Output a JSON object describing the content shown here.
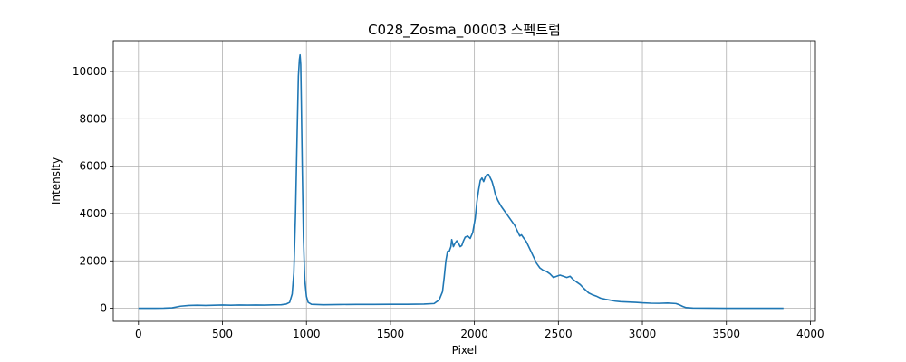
{
  "chart_data": {
    "type": "line",
    "title": "C028_Zosma_00003 스펙트럼",
    "xlabel": "Pixel",
    "ylabel": "Intensity",
    "xlim": [
      -150,
      4030
    ],
    "ylim": [
      -550,
      11300
    ],
    "xticks": [
      0,
      500,
      1000,
      1500,
      2000,
      2500,
      3000,
      3500,
      4000
    ],
    "yticks": [
      0,
      2000,
      4000,
      6000,
      8000,
      10000
    ],
    "grid": true,
    "series": [
      {
        "color": "#1f77b4",
        "points": [
          [
            0,
            0
          ],
          [
            100,
            0
          ],
          [
            150,
            5
          ],
          [
            200,
            20
          ],
          [
            250,
            90
          ],
          [
            300,
            120
          ],
          [
            350,
            130
          ],
          [
            400,
            120
          ],
          [
            450,
            130
          ],
          [
            500,
            140
          ],
          [
            550,
            130
          ],
          [
            600,
            140
          ],
          [
            650,
            135
          ],
          [
            700,
            140
          ],
          [
            750,
            135
          ],
          [
            800,
            145
          ],
          [
            850,
            150
          ],
          [
            880,
            180
          ],
          [
            900,
            250
          ],
          [
            915,
            600
          ],
          [
            925,
            1500
          ],
          [
            935,
            4000
          ],
          [
            945,
            7500
          ],
          [
            952,
            9800
          ],
          [
            958,
            10500
          ],
          [
            962,
            10700
          ],
          [
            966,
            10300
          ],
          [
            970,
            8500
          ],
          [
            975,
            6000
          ],
          [
            982,
            3000
          ],
          [
            990,
            1200
          ],
          [
            1000,
            500
          ],
          [
            1010,
            250
          ],
          [
            1030,
            170
          ],
          [
            1100,
            150
          ],
          [
            1200,
            160
          ],
          [
            1300,
            165
          ],
          [
            1400,
            165
          ],
          [
            1500,
            170
          ],
          [
            1600,
            170
          ],
          [
            1700,
            180
          ],
          [
            1760,
            200
          ],
          [
            1790,
            350
          ],
          [
            1810,
            700
          ],
          [
            1820,
            1300
          ],
          [
            1830,
            2000
          ],
          [
            1840,
            2400
          ],
          [
            1850,
            2400
          ],
          [
            1860,
            2600
          ],
          [
            1865,
            2900
          ],
          [
            1875,
            2600
          ],
          [
            1885,
            2750
          ],
          [
            1895,
            2850
          ],
          [
            1905,
            2750
          ],
          [
            1915,
            2600
          ],
          [
            1925,
            2650
          ],
          [
            1935,
            2850
          ],
          [
            1945,
            3000
          ],
          [
            1960,
            3050
          ],
          [
            1975,
            2950
          ],
          [
            1990,
            3200
          ],
          [
            2005,
            3800
          ],
          [
            2015,
            4500
          ],
          [
            2025,
            5000
          ],
          [
            2035,
            5400
          ],
          [
            2045,
            5500
          ],
          [
            2055,
            5350
          ],
          [
            2065,
            5550
          ],
          [
            2075,
            5650
          ],
          [
            2085,
            5650
          ],
          [
            2095,
            5500
          ],
          [
            2105,
            5350
          ],
          [
            2115,
            5100
          ],
          [
            2125,
            4800
          ],
          [
            2140,
            4550
          ],
          [
            2160,
            4300
          ],
          [
            2180,
            4100
          ],
          [
            2200,
            3900
          ],
          [
            2220,
            3700
          ],
          [
            2240,
            3500
          ],
          [
            2260,
            3200
          ],
          [
            2270,
            3050
          ],
          [
            2280,
            3100
          ],
          [
            2290,
            3000
          ],
          [
            2310,
            2800
          ],
          [
            2330,
            2500
          ],
          [
            2350,
            2200
          ],
          [
            2370,
            1900
          ],
          [
            2390,
            1700
          ],
          [
            2410,
            1600
          ],
          [
            2430,
            1550
          ],
          [
            2450,
            1450
          ],
          [
            2470,
            1300
          ],
          [
            2490,
            1350
          ],
          [
            2510,
            1400
          ],
          [
            2530,
            1350
          ],
          [
            2550,
            1300
          ],
          [
            2570,
            1350
          ],
          [
            2590,
            1200
          ],
          [
            2610,
            1100
          ],
          [
            2630,
            1000
          ],
          [
            2650,
            850
          ],
          [
            2680,
            650
          ],
          [
            2700,
            580
          ],
          [
            2730,
            500
          ],
          [
            2750,
            430
          ],
          [
            2780,
            380
          ],
          [
            2810,
            340
          ],
          [
            2840,
            300
          ],
          [
            2870,
            280
          ],
          [
            2900,
            270
          ],
          [
            2930,
            260
          ],
          [
            2960,
            250
          ],
          [
            3000,
            230
          ],
          [
            3050,
            215
          ],
          [
            3100,
            210
          ],
          [
            3150,
            220
          ],
          [
            3200,
            200
          ],
          [
            3220,
            150
          ],
          [
            3240,
            80
          ],
          [
            3260,
            30
          ],
          [
            3300,
            10
          ],
          [
            3400,
            5
          ],
          [
            3500,
            0
          ],
          [
            3600,
            0
          ],
          [
            3700,
            0
          ],
          [
            3800,
            0
          ],
          [
            3840,
            0
          ]
        ]
      }
    ]
  }
}
